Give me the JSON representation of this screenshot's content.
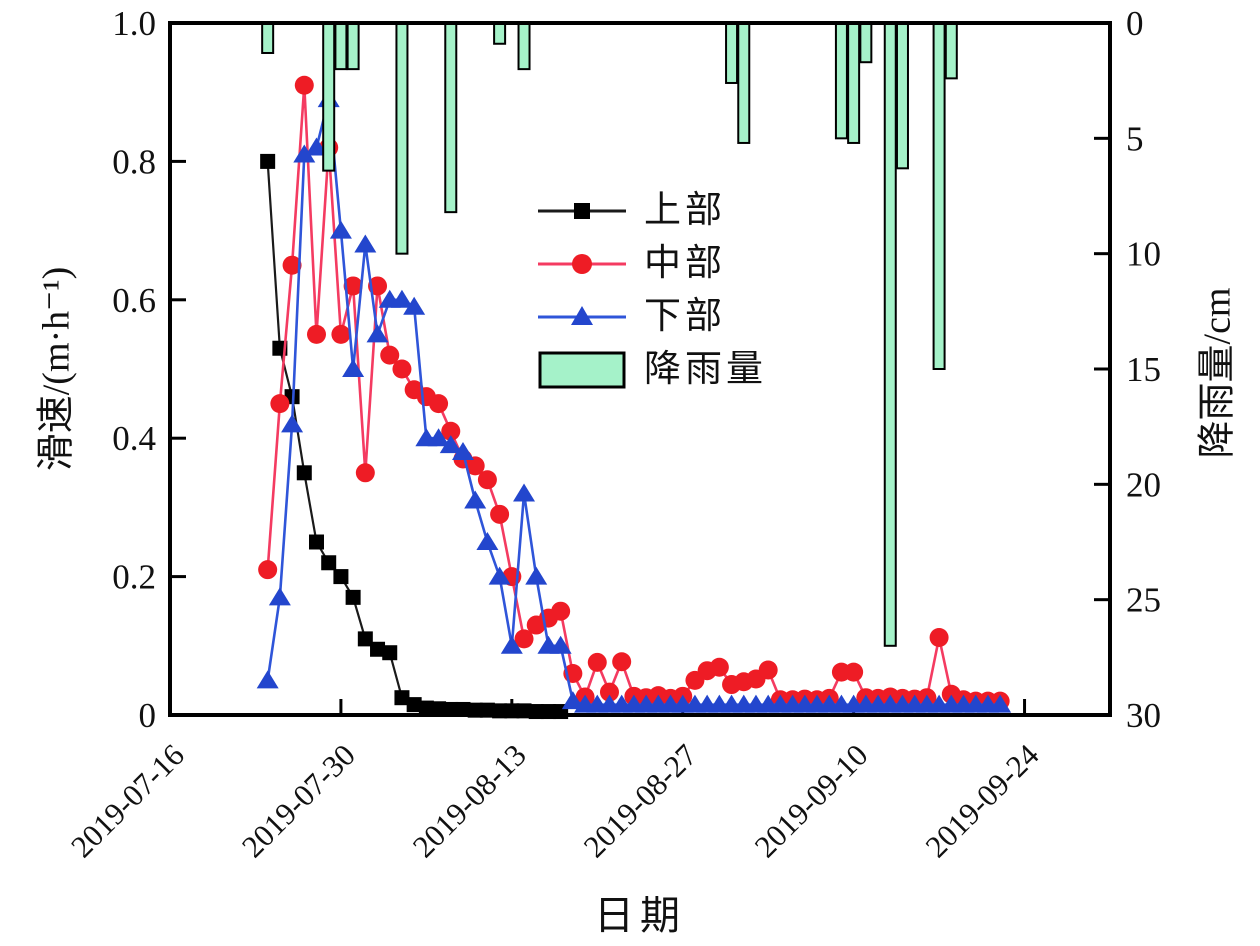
{
  "figure": {
    "x_axis_title": "日期",
    "y_left_axis_title": "滑速/(m·h⁻¹)",
    "y_right_axis_title": "降雨量/cm",
    "background_color": "#ffffff",
    "frame_color": "#000000"
  },
  "chart_data": {
    "type": "line+bar",
    "x_range": [
      "2019-07-16",
      "2019-10-01"
    ],
    "x_ticks": [
      "2019-07-16",
      "2019-07-30",
      "2019-08-13",
      "2019-08-27",
      "2019-09-10",
      "2019-09-24"
    ],
    "xlabel": "日期",
    "y_left": {
      "label": "滑速/(m·h⁻¹)",
      "range": [
        0,
        1.0
      ],
      "ticks": [
        0,
        0.2,
        0.4,
        0.6,
        0.8,
        1.0
      ],
      "tick_labels": [
        "0",
        "0.2",
        "0.4",
        "0.6",
        "0.8",
        "1.0"
      ]
    },
    "y_right": {
      "label": "降雨量/cm",
      "range": [
        0,
        30
      ],
      "inverted": true,
      "ticks": [
        0,
        5,
        10,
        15,
        20,
        25,
        30
      ],
      "tick_labels": [
        "0",
        "5",
        "10",
        "15",
        "20",
        "25",
        "30"
      ]
    },
    "legend_position": "upper-center-left",
    "grid": false,
    "series": [
      {
        "name": "上部",
        "type": "line",
        "axis": "left",
        "marker": "square",
        "marker_color": "#000000",
        "line_color": "#1a1a1a",
        "points": [
          [
            "2019-07-24",
            0.8
          ],
          [
            "2019-07-25",
            0.53
          ],
          [
            "2019-07-26",
            0.46
          ],
          [
            "2019-07-27",
            0.35
          ],
          [
            "2019-07-28",
            0.25
          ],
          [
            "2019-07-29",
            0.22
          ],
          [
            "2019-07-30",
            0.2
          ],
          [
            "2019-07-31",
            0.17
          ],
          [
            "2019-08-01",
            0.11
          ],
          [
            "2019-08-02",
            0.095
          ],
          [
            "2019-08-03",
            0.09
          ],
          [
            "2019-08-04",
            0.025
          ],
          [
            "2019-08-05",
            0.015
          ],
          [
            "2019-08-06",
            0.01
          ],
          [
            "2019-08-07",
            0.009
          ],
          [
            "2019-08-08",
            0.008
          ],
          [
            "2019-08-09",
            0.008
          ],
          [
            "2019-08-10",
            0.007
          ],
          [
            "2019-08-11",
            0.007
          ],
          [
            "2019-08-12",
            0.006
          ],
          [
            "2019-08-13",
            0.006
          ],
          [
            "2019-08-14",
            0.006
          ],
          [
            "2019-08-15",
            0.005
          ],
          [
            "2019-08-16",
            0.005
          ],
          [
            "2019-08-17",
            0.005
          ]
        ]
      },
      {
        "name": "中部",
        "type": "line",
        "axis": "left",
        "marker": "circle",
        "marker_color": "#ee1c25",
        "line_color": "#f43b61",
        "points": [
          [
            "2019-07-24",
            0.21
          ],
          [
            "2019-07-25",
            0.45
          ],
          [
            "2019-07-26",
            0.65
          ],
          [
            "2019-07-27",
            0.91
          ],
          [
            "2019-07-28",
            0.55
          ],
          [
            "2019-07-29",
            0.82
          ],
          [
            "2019-07-30",
            0.55
          ],
          [
            "2019-07-31",
            0.62
          ],
          [
            "2019-08-01",
            0.35
          ],
          [
            "2019-08-02",
            0.62
          ],
          [
            "2019-08-03",
            0.52
          ],
          [
            "2019-08-04",
            0.5
          ],
          [
            "2019-08-05",
            0.47
          ],
          [
            "2019-08-06",
            0.46
          ],
          [
            "2019-08-07",
            0.45
          ],
          [
            "2019-08-08",
            0.41
          ],
          [
            "2019-08-09",
            0.37
          ],
          [
            "2019-08-10",
            0.36
          ],
          [
            "2019-08-11",
            0.34
          ],
          [
            "2019-08-12",
            0.29
          ],
          [
            "2019-08-13",
            0.2
          ],
          [
            "2019-08-14",
            0.11
          ],
          [
            "2019-08-15",
            0.13
          ],
          [
            "2019-08-16",
            0.14
          ],
          [
            "2019-08-17",
            0.15
          ],
          [
            "2019-08-18",
            0.06
          ],
          [
            "2019-08-19",
            0.026
          ],
          [
            "2019-08-20",
            0.076
          ],
          [
            "2019-08-21",
            0.033
          ],
          [
            "2019-08-22",
            0.077
          ],
          [
            "2019-08-23",
            0.027
          ],
          [
            "2019-08-24",
            0.025
          ],
          [
            "2019-08-25",
            0.028
          ],
          [
            "2019-08-26",
            0.024
          ],
          [
            "2019-08-27",
            0.027
          ],
          [
            "2019-08-28",
            0.05
          ],
          [
            "2019-08-29",
            0.064
          ],
          [
            "2019-08-30",
            0.069
          ],
          [
            "2019-08-31",
            0.044
          ],
          [
            "2019-09-01",
            0.048
          ],
          [
            "2019-09-02",
            0.052
          ],
          [
            "2019-09-03",
            0.065
          ],
          [
            "2019-09-04",
            0.022
          ],
          [
            "2019-09-05",
            0.022
          ],
          [
            "2019-09-06",
            0.023
          ],
          [
            "2019-09-07",
            0.022
          ],
          [
            "2019-09-08",
            0.024
          ],
          [
            "2019-09-09",
            0.062
          ],
          [
            "2019-09-10",
            0.062
          ],
          [
            "2019-09-11",
            0.025
          ],
          [
            "2019-09-12",
            0.024
          ],
          [
            "2019-09-13",
            0.026
          ],
          [
            "2019-09-14",
            0.024
          ],
          [
            "2019-09-15",
            0.023
          ],
          [
            "2019-09-16",
            0.025
          ],
          [
            "2019-09-17",
            0.112
          ],
          [
            "2019-09-18",
            0.03
          ],
          [
            "2019-09-19",
            0.022
          ],
          [
            "2019-09-20",
            0.02
          ],
          [
            "2019-09-21",
            0.02
          ],
          [
            "2019-09-22",
            0.02
          ]
        ]
      },
      {
        "name": "下部",
        "type": "line",
        "axis": "left",
        "marker": "triangle",
        "marker_color": "#2346cd",
        "line_color": "#2f55d9",
        "points": [
          [
            "2019-07-24",
            0.05
          ],
          [
            "2019-07-25",
            0.17
          ],
          [
            "2019-07-26",
            0.42
          ],
          [
            "2019-07-27",
            0.81
          ],
          [
            "2019-07-28",
            0.82
          ],
          [
            "2019-07-29",
            0.89
          ],
          [
            "2019-07-30",
            0.7
          ],
          [
            "2019-07-31",
            0.5
          ],
          [
            "2019-08-01",
            0.68
          ],
          [
            "2019-08-02",
            0.55
          ],
          [
            "2019-08-03",
            0.6
          ],
          [
            "2019-08-04",
            0.6
          ],
          [
            "2019-08-05",
            0.59
          ],
          [
            "2019-08-06",
            0.4
          ],
          [
            "2019-08-07",
            0.4
          ],
          [
            "2019-08-08",
            0.39
          ],
          [
            "2019-08-09",
            0.38
          ],
          [
            "2019-08-10",
            0.31
          ],
          [
            "2019-08-11",
            0.25
          ],
          [
            "2019-08-12",
            0.2
          ],
          [
            "2019-08-13",
            0.1
          ],
          [
            "2019-08-14",
            0.32
          ],
          [
            "2019-08-15",
            0.2
          ],
          [
            "2019-08-16",
            0.1
          ],
          [
            "2019-08-17",
            0.1
          ],
          [
            "2019-08-18",
            0.02
          ],
          [
            "2019-08-19",
            0.015
          ],
          [
            "2019-08-20",
            0.015
          ],
          [
            "2019-08-21",
            0.015
          ],
          [
            "2019-08-22",
            0.015
          ],
          [
            "2019-08-23",
            0.015
          ],
          [
            "2019-08-24",
            0.015
          ],
          [
            "2019-08-25",
            0.015
          ],
          [
            "2019-08-26",
            0.015
          ],
          [
            "2019-08-27",
            0.015
          ],
          [
            "2019-08-28",
            0.015
          ],
          [
            "2019-08-29",
            0.015
          ],
          [
            "2019-08-30",
            0.015
          ],
          [
            "2019-08-31",
            0.015
          ],
          [
            "2019-09-01",
            0.015
          ],
          [
            "2019-09-02",
            0.015
          ],
          [
            "2019-09-03",
            0.015
          ],
          [
            "2019-09-04",
            0.015
          ],
          [
            "2019-09-05",
            0.015
          ],
          [
            "2019-09-06",
            0.015
          ],
          [
            "2019-09-07",
            0.015
          ],
          [
            "2019-09-08",
            0.015
          ],
          [
            "2019-09-09",
            0.015
          ],
          [
            "2019-09-10",
            0.015
          ],
          [
            "2019-09-11",
            0.015
          ],
          [
            "2019-09-12",
            0.015
          ],
          [
            "2019-09-13",
            0.015
          ],
          [
            "2019-09-14",
            0.015
          ],
          [
            "2019-09-15",
            0.015
          ],
          [
            "2019-09-16",
            0.015
          ],
          [
            "2019-09-17",
            0.015
          ],
          [
            "2019-09-18",
            0.015
          ],
          [
            "2019-09-19",
            0.015
          ],
          [
            "2019-09-20",
            0.015
          ],
          [
            "2019-09-21",
            0.015
          ],
          [
            "2019-09-22",
            0.015
          ]
        ]
      },
      {
        "name": "降雨量",
        "type": "bar",
        "axis": "right",
        "bar_fill": "#a5f2c9",
        "bar_stroke": "#000000",
        "unit": "cm",
        "points": [
          [
            "2019-07-24",
            1.3
          ],
          [
            "2019-07-29",
            6.4
          ],
          [
            "2019-07-30",
            2.0
          ],
          [
            "2019-07-31",
            2.0
          ],
          [
            "2019-08-04",
            10.0
          ],
          [
            "2019-08-08",
            8.2
          ],
          [
            "2019-08-12",
            0.9
          ],
          [
            "2019-08-14",
            2.0
          ],
          [
            "2019-08-31",
            2.6
          ],
          [
            "2019-09-01",
            5.2
          ],
          [
            "2019-09-09",
            5.0
          ],
          [
            "2019-09-10",
            5.2
          ],
          [
            "2019-09-11",
            1.7
          ],
          [
            "2019-09-13",
            27.0
          ],
          [
            "2019-09-14",
            6.3
          ],
          [
            "2019-09-17",
            15.0
          ],
          [
            "2019-09-18",
            2.4
          ]
        ]
      }
    ]
  }
}
